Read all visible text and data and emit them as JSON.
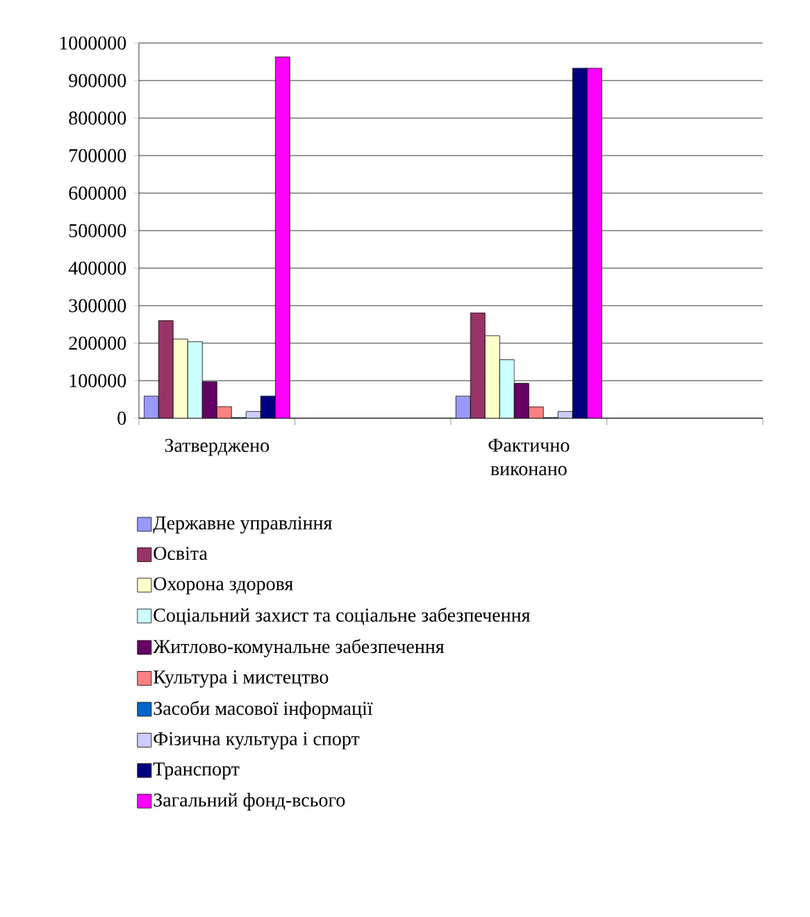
{
  "chart_data": {
    "type": "bar",
    "categories": [
      "Затверджено",
      null,
      "Фактично виконано",
      null
    ],
    "ylim": [
      0,
      1000000
    ],
    "yticks": [
      0,
      100000,
      200000,
      300000,
      400000,
      500000,
      600000,
      700000,
      800000,
      900000,
      1000000
    ],
    "grid": "y",
    "legend": "bottom",
    "series": [
      {
        "name": "Державне управління",
        "color": "#9999ff",
        "values": [
          59000,
          null,
          59000,
          null
        ]
      },
      {
        "name": "Освіта",
        "color": "#993366",
        "values": [
          260000,
          null,
          281000,
          null
        ]
      },
      {
        "name": "Охорона здоровя",
        "color": "#ffffcc",
        "values": [
          211000,
          null,
          220000,
          null
        ]
      },
      {
        "name": "Соціальний захист та соціальне забезпечення",
        "color": "#ccffff",
        "values": [
          204000,
          null,
          156000,
          null
        ]
      },
      {
        "name": "Житлово-комунальне забезпечення",
        "color": "#660066",
        "values": [
          97000,
          null,
          93000,
          null
        ]
      },
      {
        "name": "Культура і мистецтво",
        "color": "#ff8080",
        "values": [
          31000,
          null,
          30000,
          null
        ]
      },
      {
        "name": "Засоби масової інформації",
        "color": "#0066cc",
        "values": [
          2000,
          null,
          2000,
          null
        ]
      },
      {
        "name": "Фізична культура і спорт",
        "color": "#ccccff",
        "values": [
          18000,
          null,
          18000,
          null
        ]
      },
      {
        "name": "Транспорт",
        "color": "#000080",
        "values": [
          59000,
          null,
          933000,
          null
        ]
      },
      {
        "name": "Загальний фонд-всього",
        "color": "#ff00ff",
        "values": [
          963000,
          null,
          933000,
          null
        ]
      }
    ]
  }
}
